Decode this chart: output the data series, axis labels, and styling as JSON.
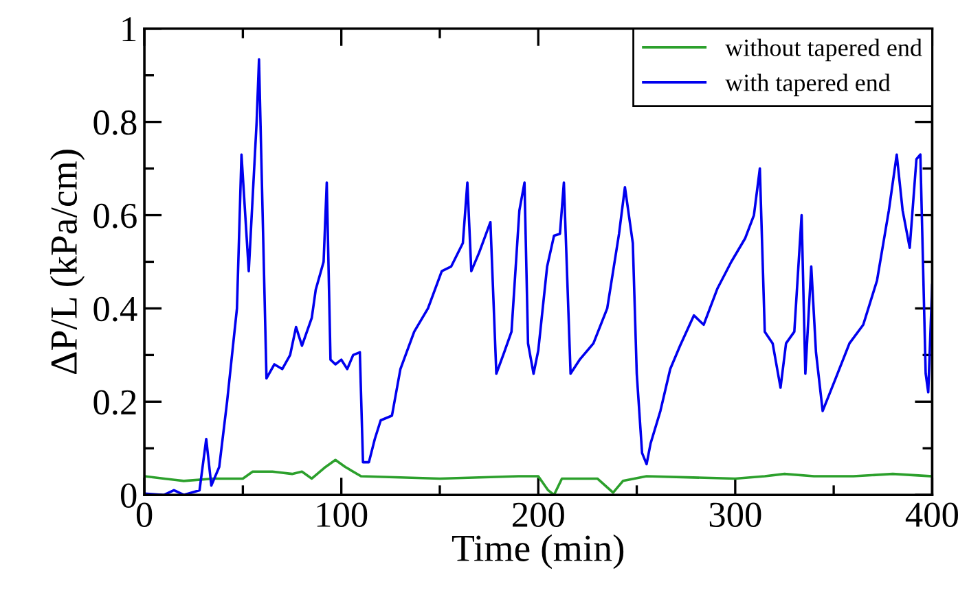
{
  "chart_data": {
    "type": "line",
    "xlabel": "Time (min)",
    "ylabel": "ΔP/L (kPa/cm)",
    "xlim": [
      0,
      400
    ],
    "ylim": [
      0,
      1
    ],
    "xticks": [
      0,
      100,
      200,
      300,
      400
    ],
    "yticks": [
      0,
      0.2,
      0.4,
      0.6,
      0.8,
      1
    ],
    "legend": "top right",
    "grid": false,
    "marker": "none",
    "line_style": "solid",
    "series": [
      {
        "name": "without tapered end",
        "color": "#2ca02c",
        "x": [
          0,
          10,
          20,
          35,
          50,
          55,
          65,
          75,
          80,
          85,
          92,
          97,
          102,
          110,
          150,
          190,
          200,
          205,
          208,
          212,
          230,
          238,
          243,
          255,
          300,
          315,
          325,
          340,
          360,
          380,
          400
        ],
        "values": [
          0.04,
          0.035,
          0.03,
          0.035,
          0.035,
          0.05,
          0.05,
          0.045,
          0.05,
          0.035,
          0.06,
          0.075,
          0.06,
          0.04,
          0.035,
          0.04,
          0.04,
          0.01,
          0.0,
          0.035,
          0.035,
          0.005,
          0.03,
          0.04,
          0.035,
          0.04,
          0.045,
          0.04,
          0.04,
          0.045,
          0.04
        ]
      },
      {
        "name": "with tapered end",
        "color": "#0000ee",
        "x": [
          0,
          10,
          15,
          20,
          28,
          31.4,
          34,
          38,
          42,
          47,
          49.3,
          53,
          57,
          58.2,
          62,
          66,
          70,
          74,
          77,
          80,
          85,
          87,
          91,
          92.6,
          94.5,
          97,
          100,
          103,
          106,
          109.4,
          111,
          114,
          117,
          120,
          125.7,
          130,
          137,
          144,
          151,
          155.8,
          161.7,
          164,
          166,
          170,
          175.7,
          178.7,
          182.7,
          186.4,
          190.4,
          193,
          194.8,
          197.6,
          200,
          204.5,
          208,
          211,
          213,
          216.4,
          221,
          228,
          235,
          241,
          244,
          248,
          250,
          252.7,
          255,
          257,
          262,
          267,
          272,
          279,
          284,
          291,
          298,
          305,
          309.5,
          312.5,
          315,
          319,
          323,
          325.8,
          330,
          333.7,
          335.6,
          338.6,
          341,
          344.4,
          351,
          358,
          365,
          372,
          378,
          382,
          385,
          388.6,
          392,
          394,
          396.7,
          398,
          400
        ],
        "values": [
          0.003,
          0.0,
          0.01,
          0.0,
          0.01,
          0.12,
          0.02,
          0.06,
          0.2,
          0.4,
          0.73,
          0.48,
          0.8,
          0.934,
          0.25,
          0.28,
          0.27,
          0.3,
          0.36,
          0.32,
          0.38,
          0.44,
          0.5,
          0.67,
          0.29,
          0.28,
          0.29,
          0.27,
          0.3,
          0.306,
          0.07,
          0.07,
          0.12,
          0.16,
          0.17,
          0.27,
          0.35,
          0.4,
          0.48,
          0.49,
          0.54,
          0.67,
          0.48,
          0.52,
          0.585,
          0.26,
          0.306,
          0.35,
          0.61,
          0.67,
          0.325,
          0.26,
          0.31,
          0.49,
          0.556,
          0.56,
          0.67,
          0.26,
          0.29,
          0.325,
          0.4,
          0.56,
          0.66,
          0.54,
          0.26,
          0.09,
          0.066,
          0.11,
          0.18,
          0.27,
          0.32,
          0.385,
          0.365,
          0.443,
          0.5,
          0.55,
          0.6,
          0.7,
          0.35,
          0.325,
          0.23,
          0.325,
          0.35,
          0.6,
          0.26,
          0.49,
          0.306,
          0.18,
          0.25,
          0.325,
          0.365,
          0.46,
          0.61,
          0.73,
          0.61,
          0.53,
          0.72,
          0.73,
          0.26,
          0.22,
          0.45
        ]
      }
    ]
  }
}
